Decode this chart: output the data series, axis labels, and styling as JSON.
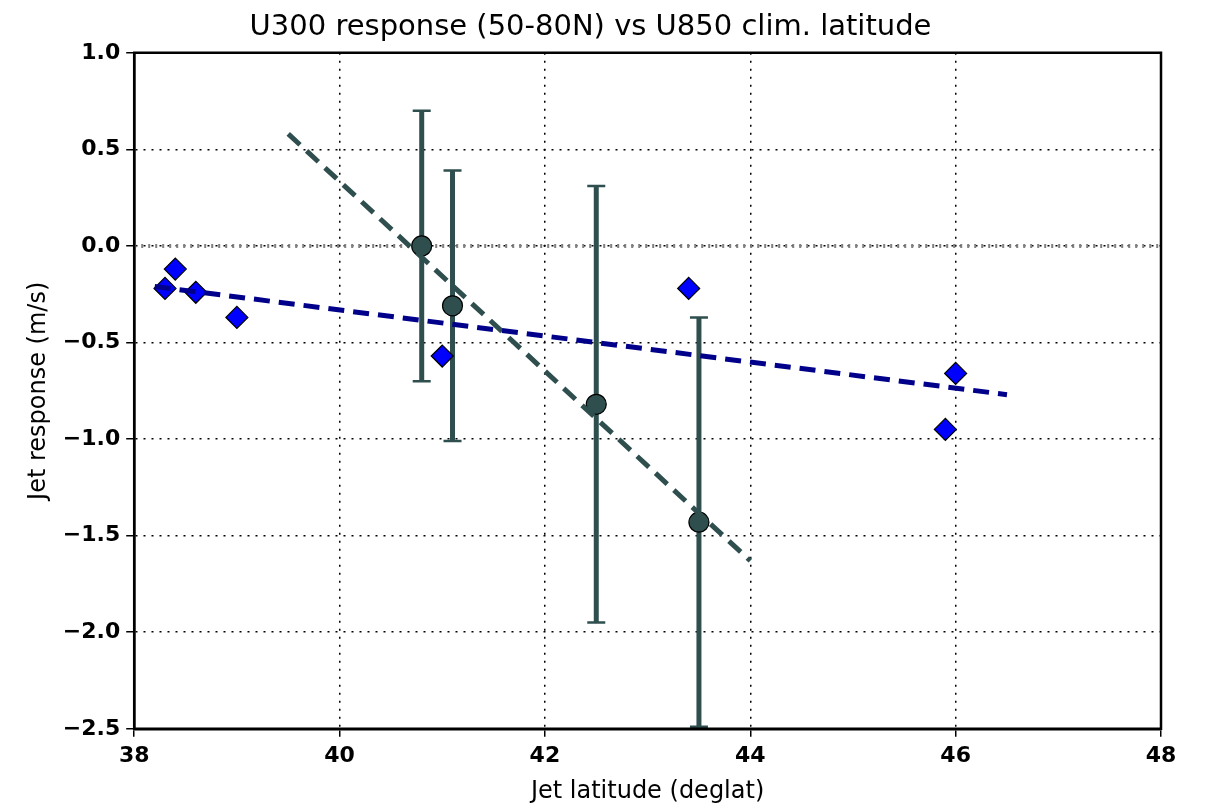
{
  "chart_data": {
    "type": "scatter",
    "title": "U300 response (50-80N) vs U850 clim. latitude",
    "xlabel": "Jet latitude (deglat)",
    "ylabel": "Jet response (m/s)",
    "xlim": [
      38,
      48
    ],
    "xticks": [
      38,
      40,
      42,
      44,
      46,
      48
    ],
    "ylim": [
      -2.5,
      1.0
    ],
    "yticks": [
      {
        "value": -2.5,
        "label": "−2.5"
      },
      {
        "value": -2.0,
        "label": "−2.0"
      },
      {
        "value": -1.5,
        "label": "−1.5"
      },
      {
        "value": -1.0,
        "label": "−1.0"
      },
      {
        "value": -0.5,
        "label": "−0.5"
      },
      {
        "value": 0.0,
        "label": "0.0"
      },
      {
        "value": 0.5,
        "label": "0.5"
      },
      {
        "value": 1.0,
        "label": "1.0"
      }
    ],
    "grid": true,
    "legend": false,
    "ref_lines": [
      {
        "axis": "y",
        "value": 0,
        "color": "#808080",
        "line_style": "dotted"
      }
    ],
    "series": [
      {
        "type": "line",
        "color": "#00008b",
        "line_style": "dashed",
        "marker": "none",
        "x": [
          38.2,
          46.5
        ],
        "values": [
          -0.21,
          -0.77
        ]
      },
      {
        "type": "line",
        "color": "#2f4f4f",
        "line_style": "dashed",
        "marker": "none",
        "x": [
          39.5,
          44.0
        ],
        "values": [
          0.58,
          -1.63
        ]
      },
      {
        "color": "#0000ff",
        "marker": "diamond",
        "x": [
          38.3,
          38.4,
          38.6,
          39.0,
          41.0,
          43.4,
          45.9,
          46.0
        ],
        "values": [
          -0.22,
          -0.12,
          -0.24,
          -0.37,
          -0.57,
          -0.22,
          -0.95,
          -0.66
        ]
      },
      {
        "color": "#2f4f4f",
        "marker": "circle",
        "x": [
          40.8,
          41.1,
          42.5,
          43.5
        ],
        "values": [
          0.0,
          -0.31,
          -0.82,
          -1.43
        ],
        "errors": [
          [
            -0.7,
            0.7
          ],
          [
            -1.01,
            0.39
          ],
          [
            -1.95,
            0.31
          ],
          [
            -2.49,
            -0.37
          ]
        ]
      }
    ]
  }
}
